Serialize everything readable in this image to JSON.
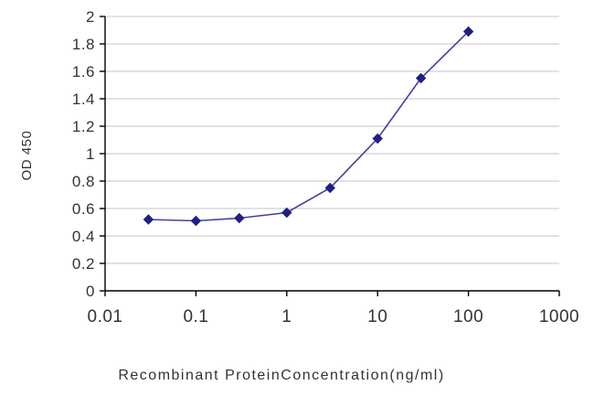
{
  "chart_data": {
    "type": "line",
    "title": "",
    "xlabel": "Recombinant ProteinConcentration(ng/ml)",
    "ylabel": "OD 450",
    "x_scale": "log",
    "xlim": [
      0.01,
      1000
    ],
    "ylim": [
      0,
      2
    ],
    "x_ticks": [
      0.01,
      0.1,
      1,
      10,
      100,
      1000
    ],
    "x_tick_labels": [
      "0.01",
      "0.1",
      "1",
      "10",
      "100",
      "1000"
    ],
    "y_ticks": [
      0,
      0.2,
      0.4,
      0.6,
      0.8,
      1,
      1.2,
      1.4,
      1.6,
      1.8,
      2
    ],
    "y_tick_labels": [
      "0",
      "0.2",
      "0.4",
      "0.6",
      "0.8",
      "1",
      "1.2",
      "1.4",
      "1.6",
      "1.8",
      "2"
    ],
    "grid": "horizontal",
    "legend": "none",
    "series": [
      {
        "name": "OD 450",
        "marker": "diamond",
        "x": [
          0.03,
          0.1,
          0.3,
          1,
          3,
          10,
          30,
          100
        ],
        "y": [
          0.52,
          0.51,
          0.53,
          0.57,
          0.75,
          1.11,
          1.55,
          1.89
        ]
      }
    ]
  },
  "colors": {
    "background": "#ffffff",
    "grid": "#c6c6c6",
    "axis": "#000000",
    "text": "#333333",
    "line": "#4040a8",
    "marker": "#1f1f87"
  }
}
